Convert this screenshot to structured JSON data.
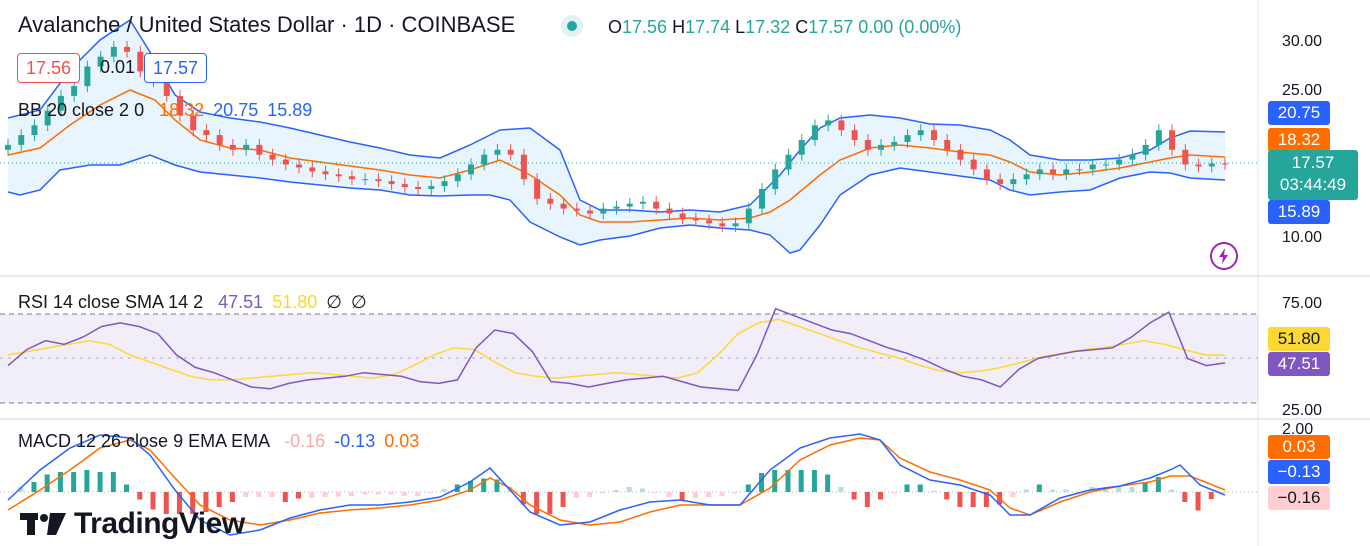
{
  "header": {
    "title": "Avalanche / United States Dollar · 1D · COINBASE",
    "open_label": "O",
    "open": "17.56",
    "high_label": "H",
    "high": "17.74",
    "low_label": "L",
    "low": "17.32",
    "close_label": "C",
    "close": "17.57",
    "change": "0.00 (0.00%)",
    "status_color": "#26a69a"
  },
  "trade": {
    "sell": "17.56",
    "spread": "0.01",
    "buy": "17.57"
  },
  "bb": {
    "label": "BB 20 close 2 0",
    "basis": "18.32",
    "upper": "20.75",
    "lower": "15.89"
  },
  "rsi": {
    "label": "RSI 14 close SMA 14 2",
    "value": "47.51",
    "sma": "51.80",
    "v3": "∅",
    "v4": "∅"
  },
  "macd": {
    "label": "MACD 12 26 close 9 EMA EMA",
    "hist": "-0.16",
    "macd": "-0.13",
    "signal": "0.03"
  },
  "price_axis": {
    "ticks": [
      "30.00",
      "25.00",
      "10.00"
    ]
  },
  "rsi_axis": {
    "ticks": [
      "75.00",
      "25.00"
    ]
  },
  "macd_axis": {
    "ticks": [
      "2.00"
    ]
  },
  "tags": {
    "bb_upper": "20.75",
    "bb_basis": "18.32",
    "last_price": "17.57",
    "countdown": "03:44:49",
    "bb_lower": "15.89",
    "rsi_sma": "51.80",
    "rsi": "47.51",
    "macd_signal": "0.03",
    "macd": "−0.13",
    "macd_hist": "−0.16"
  },
  "colors": {
    "up": "#26a69a",
    "down": "#ef5350",
    "bb_band": "#2962ff",
    "bb_basis": "#ff6d00",
    "rsi": "#7e57c2",
    "rsi_sma": "#fdd835",
    "macd": "#2962ff",
    "signal": "#ff6d00"
  },
  "logo": {
    "text": "TradingView"
  },
  "chart_data": {
    "type": "candlestick",
    "symbol": "Avalanche / United States Dollar",
    "interval": "1D",
    "price_scale": [
      10,
      30
    ],
    "close_approx": [
      19.5,
      20.5,
      21.5,
      23,
      24.5,
      25.5,
      27.5,
      28.5,
      29.5,
      29,
      27,
      26,
      24.5,
      22.5,
      21,
      20.5,
      19.5,
      19,
      19.5,
      18.5,
      18,
      17.5,
      17.2,
      16.8,
      16.5,
      16.3,
      16,
      16,
      15.8,
      15.5,
      15.2,
      15,
      15.3,
      15.8,
      16.5,
      17.5,
      18.5,
      19,
      18.5,
      16,
      14,
      13.5,
      13,
      12.8,
      12.5,
      13,
      13.2,
      13.5,
      13.7,
      13,
      12.5,
      12,
      11.8,
      11.5,
      11.2,
      11.5,
      13,
      15,
      17,
      18.5,
      20,
      21.5,
      22,
      21,
      20,
      19,
      19.5,
      19.8,
      20.5,
      21,
      20,
      19,
      18,
      17,
      16,
      15.5,
      16,
      16.5,
      17,
      16.5,
      17,
      17,
      17.5,
      17.5,
      18,
      18.5,
      19.5,
      21,
      19,
      17.5,
      17.3,
      17.6,
      17.57
    ],
    "rsi_approx": [
      46,
      55,
      60,
      58,
      62,
      68,
      70,
      68,
      64,
      52,
      45,
      42,
      38,
      34,
      33,
      36,
      38,
      39,
      40,
      42,
      41,
      40,
      37,
      36,
      38,
      56,
      66,
      64,
      54,
      37,
      36,
      34,
      36,
      38,
      39,
      40,
      37,
      34,
      33,
      32,
      52,
      78,
      74,
      70,
      66,
      64,
      60,
      56,
      53,
      49,
      44,
      40,
      38,
      34,
      44,
      50,
      52,
      54,
      55,
      56,
      62,
      70,
      76,
      50,
      46,
      47.51
    ],
    "rsi_sma_approx": [
      52,
      54,
      56,
      58,
      60,
      58,
      52,
      48,
      44,
      40,
      38,
      38,
      39,
      40,
      41,
      42,
      41,
      40,
      39,
      41,
      46,
      52,
      56,
      55,
      48,
      42,
      40,
      39,
      40,
      41,
      42,
      41,
      40,
      39,
      42,
      52,
      64,
      70,
      72,
      68,
      64,
      60,
      56,
      53,
      50,
      46,
      43,
      42,
      43,
      45,
      48,
      51,
      53,
      55,
      56,
      58,
      60,
      58,
      55,
      52,
      51.8
    ]
  }
}
